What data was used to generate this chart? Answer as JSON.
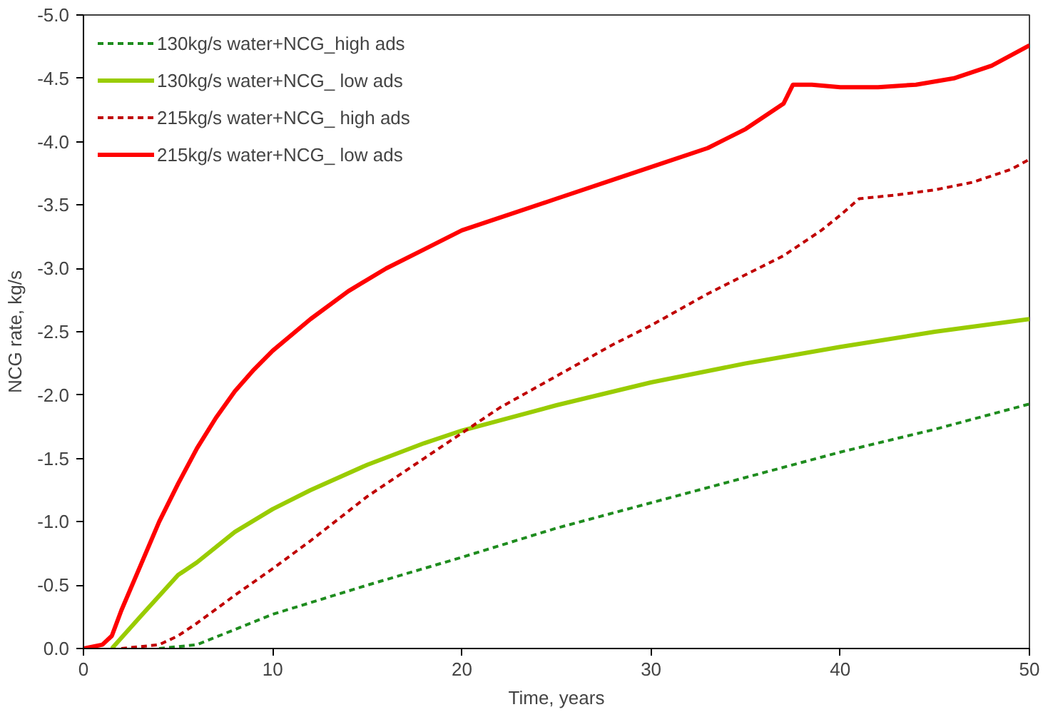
{
  "chart_data": {
    "type": "line",
    "xlabel": "Time, years",
    "ylabel": "NCG rate, kg/s",
    "xlim": [
      0,
      50
    ],
    "ylim": [
      0,
      -5
    ],
    "xticks": [
      0,
      10,
      20,
      30,
      40,
      50
    ],
    "yticks": [
      {
        "value": 0,
        "label": "0.0"
      },
      {
        "value": -0.5,
        "label": "-0.5"
      },
      {
        "value": -1,
        "label": "-1.0"
      },
      {
        "value": -1.5,
        "label": "-1.5"
      },
      {
        "value": -2,
        "label": "-2.0"
      },
      {
        "value": -2.5,
        "label": "-2.5"
      },
      {
        "value": -3,
        "label": "-3.0"
      },
      {
        "value": -3.5,
        "label": "-3.5"
      },
      {
        "value": -4,
        "label": "-4.0"
      },
      {
        "value": -4.5,
        "label": "-4.5"
      },
      {
        "value": -5,
        "label": "-5.0"
      }
    ],
    "grid": false,
    "legend": "top left",
    "marker": "none",
    "series": [
      {
        "name": "130kg/s water+NCG_high ads",
        "color": "#1e8c1e",
        "line_style": "dashed",
        "x": [
          4,
          6,
          8,
          10,
          15,
          20,
          25,
          30,
          35,
          40,
          45,
          50
        ],
        "values": [
          0,
          -0.03,
          -0.15,
          -0.27,
          -0.5,
          -0.72,
          -0.95,
          -1.15,
          -1.35,
          -1.55,
          -1.73,
          -1.93
        ]
      },
      {
        "name": "130kg/s water+NCG_ low ads",
        "color": "#99cc00",
        "line_style": "solid",
        "x": [
          1.5,
          3,
          5,
          6,
          8,
          10,
          12,
          15,
          18,
          20,
          22,
          25,
          30,
          35,
          40,
          45,
          50
        ],
        "values": [
          0,
          -0.25,
          -0.58,
          -0.68,
          -0.92,
          -1.1,
          -1.25,
          -1.45,
          -1.62,
          -1.72,
          -1.8,
          -1.92,
          -2.1,
          -2.25,
          -2.38,
          -2.5,
          -2.6
        ]
      },
      {
        "name": "215kg/s water+NCG_ high ads",
        "color": "#c00000",
        "line_style": "dashed",
        "x": [
          2,
          4,
          5,
          6,
          8,
          10,
          12,
          15,
          18,
          20,
          22,
          25,
          28,
          30,
          33,
          35,
          37,
          39,
          40,
          41,
          43,
          45,
          47,
          49,
          50
        ],
        "values": [
          0,
          -0.03,
          -0.1,
          -0.2,
          -0.42,
          -0.63,
          -0.85,
          -1.2,
          -1.5,
          -1.7,
          -1.9,
          -2.15,
          -2.4,
          -2.55,
          -2.8,
          -2.95,
          -3.1,
          -3.3,
          -3.42,
          -3.55,
          -3.58,
          -3.62,
          -3.68,
          -3.78,
          -3.86
        ]
      },
      {
        "name": "215kg/s water+NCG_ low ads",
        "color": "#ff0000",
        "line_style": "solid",
        "x": [
          0,
          1,
          1.5,
          2,
          3,
          4,
          5,
          6,
          7,
          8,
          9,
          10,
          12,
          14,
          16,
          18,
          20,
          22,
          25,
          28,
          30,
          33,
          35,
          37,
          37.5,
          38.5,
          40,
          42,
          44,
          46,
          48,
          50
        ],
        "values": [
          0,
          -0.03,
          -0.1,
          -0.3,
          -0.65,
          -1.0,
          -1.3,
          -1.58,
          -1.82,
          -2.03,
          -2.2,
          -2.35,
          -2.6,
          -2.82,
          -3.0,
          -3.15,
          -3.3,
          -3.4,
          -3.55,
          -3.7,
          -3.8,
          -3.95,
          -4.1,
          -4.3,
          -4.45,
          -4.45,
          -4.43,
          -4.43,
          -4.45,
          -4.5,
          -4.6,
          -4.76
        ]
      }
    ]
  }
}
